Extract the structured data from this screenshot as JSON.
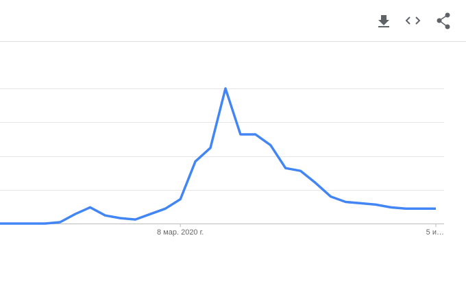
{
  "chart_data": {
    "type": "line",
    "categories": [
      null,
      null,
      null,
      null,
      null,
      null,
      null,
      null,
      null,
      null,
      null,
      null,
      "8 мар. 2020 г.",
      null,
      null,
      null,
      null,
      null,
      null,
      null,
      null,
      null,
      null,
      null,
      null,
      null,
      null,
      null,
      null,
      "5 и…"
    ],
    "series": [
      {
        "color": "#4285f4",
        "values": [
          0,
          0,
          0,
          0,
          1,
          7,
          12,
          6,
          4,
          3,
          7,
          11,
          18,
          46,
          56,
          100,
          66,
          66,
          58,
          41,
          39,
          30,
          20,
          16,
          15,
          14,
          12,
          11,
          11,
          11
        ]
      }
    ],
    "ylim": [
      0,
      100
    ],
    "yticks": [
      0,
      25,
      50,
      75,
      100
    ],
    "grid": true
  }
}
